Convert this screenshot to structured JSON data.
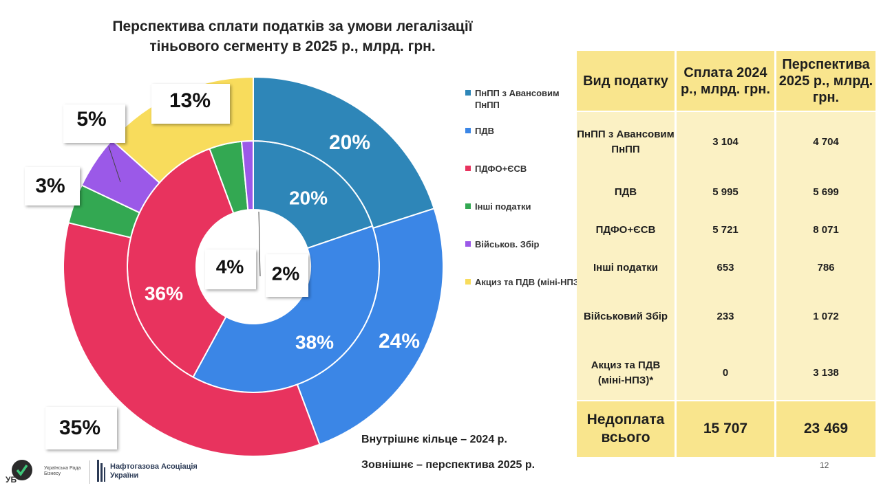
{
  "title": "Перспектива сплати податків за  умови легалізації тіньового сегменту в 2025 р., млрд. грн.",
  "title_lines": [
    "Перспектива сплати податків за  умови легалізації",
    "тіньового сегменту в 2025 р., млрд. грн."
  ],
  "chart_data": {
    "type": "donut",
    "categories": [
      "ПнПП з Авансовим ПнПП",
      "ПДВ",
      "ПДФО+ЄСВ",
      "Інші податки",
      "Військов. Збір",
      "Акциз та ПДВ (міні-НПЗ)*"
    ],
    "colors": [
      "#2e86b8",
      "#3b86e6",
      "#e8335e",
      "#33a852",
      "#9b59e8",
      "#f8dc5c"
    ],
    "series": [
      {
        "name": "Внутрішнє кільце – 2024 р.",
        "values": [
          3104,
          5995,
          5721,
          653,
          233,
          0
        ],
        "labels": [
          "20%",
          "38%",
          "36%",
          "4%",
          "2%",
          ""
        ]
      },
      {
        "name": "Зовнішнє – перспектива 2025 р.",
        "values": [
          4704,
          5699,
          8071,
          786,
          1072,
          3138
        ],
        "labels": [
          "20%",
          "24%",
          "35%",
          "3%",
          "5%",
          "13%"
        ]
      }
    ]
  },
  "legend": [
    {
      "label": "ПнПП з Авансовим ПнПП",
      "color": "#2e86b8"
    },
    {
      "label": "ПДВ",
      "color": "#3b86e6"
    },
    {
      "label": "ПДФО+ЄСВ",
      "color": "#e8335e"
    },
    {
      "label": "Інші податки",
      "color": "#33a852"
    },
    {
      "label": "Військов. Збір",
      "color": "#9b59e8"
    },
    {
      "label": "Акциз та ПДВ (міні-НПЗ)*",
      "color": "#f8dc5c"
    }
  ],
  "table": {
    "headers": [
      "Вид податку",
      "Сплата 2024 р., млрд. грн.",
      "Перспектива 2025 р., млрд. грн."
    ],
    "rows": [
      [
        "ПнПП з Авансовим ПнПП",
        "3 104",
        "4 704"
      ],
      [
        "ПДВ",
        "5 995",
        "5 699"
      ],
      [
        "ПДФО+ЄСВ",
        "5 721",
        "8 071"
      ],
      [
        "Інші податки",
        "653",
        "786"
      ],
      [
        "Військовий Збір",
        "233",
        "1 072"
      ],
      [
        "Акциз та ПДВ (міні-НПЗ)*",
        "0",
        "3 138"
      ]
    ],
    "footer": [
      "Недоплата всього",
      "15 707",
      "23 469"
    ]
  },
  "notes": {
    "inner": "Внутрішнє кільце – 2024 р.",
    "outer": "Зовнішнє – перспектива 2025 р."
  },
  "page_number": "12",
  "logos": {
    "ub_text": "Українська Рада Бізнесу",
    "nafto_text": "Нафтогазова Асоціація України"
  }
}
